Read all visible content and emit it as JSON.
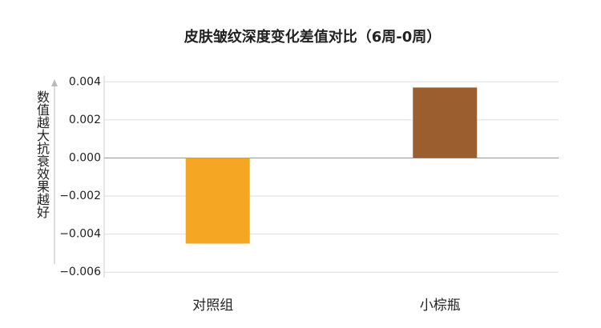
{
  "chart_data": {
    "type": "bar",
    "title": "皮肤皱纹深度变化差值对比（6周-0周）",
    "y_label": "数值越大抗衰效果越好",
    "categories": [
      "对照组",
      "小棕瓶"
    ],
    "series": [
      {
        "values": [
          -0.0045,
          0.0037
        ],
        "colors": [
          "#f5a623",
          "#9b5e2e"
        ]
      }
    ],
    "ylim": [
      -0.0062,
      0.0042
    ],
    "yticks": [
      0.004,
      0.002,
      {
        "value": 0,
        "label": "0.000"
      },
      {
        "value": -0.002,
        "label": "−0.002"
      },
      {
        "value": -0.004,
        "label": "−0.004"
      },
      {
        "value": -0.006,
        "label": "−0.006"
      }
    ],
    "grid": true
  }
}
